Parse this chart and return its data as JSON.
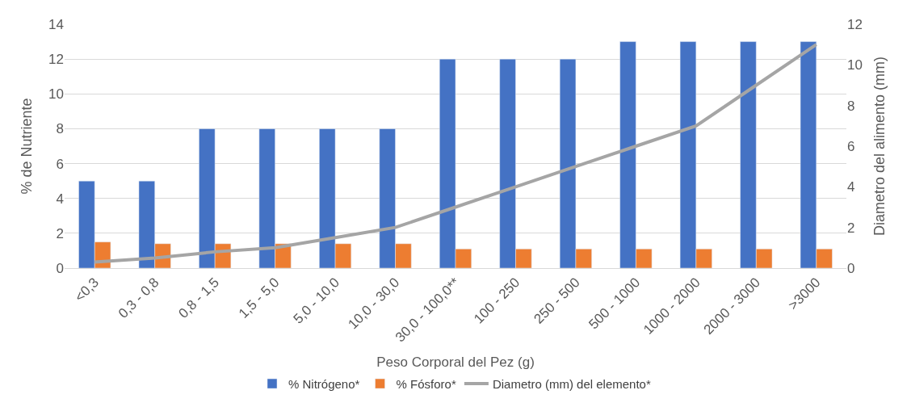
{
  "chart_data": {
    "type": "bar",
    "xlabel": "Peso Corporal del Pez (g)",
    "ylabel": "% de Nutriente",
    "y2label": "Diametro del alimento (mm)",
    "categories": [
      "<0,3",
      "0,3 - 0,8",
      "0,8 - 1,5",
      "1,5 - 5,0",
      "5,0 - 10,0",
      "10,0 - 30,0",
      "30,0 - 100,0**",
      "100 - 250",
      "250 - 500",
      "500 - 1000",
      "1000 - 2000",
      "2000 - 3000",
      ">3000"
    ],
    "series": [
      {
        "name": "% Nitrógeno*",
        "color": "#4472c4",
        "values": [
          5,
          5,
          8,
          8,
          8,
          8,
          12,
          12,
          12,
          13,
          13,
          13,
          13
        ]
      },
      {
        "name": "% Fósforo*",
        "color": "#ed7d31",
        "values": [
          1.5,
          1.4,
          1.4,
          1.4,
          1.4,
          1.4,
          1.1,
          1.1,
          1.1,
          1.1,
          1.1,
          1.1,
          1.1
        ]
      },
      {
        "name": "Diametro (mm) del elemento*",
        "color": "#a5a5a5",
        "type": "line",
        "axis": "y2",
        "values": [
          0.3,
          0.5,
          0.8,
          1.0,
          1.5,
          2.0,
          3.0,
          4.0,
          5.0,
          6.0,
          7.0,
          9.0,
          11.0
        ]
      }
    ],
    "ylim": [
      0,
      14
    ],
    "yticks": [
      0,
      2,
      4,
      6,
      8,
      10,
      12,
      14
    ],
    "y2lim": [
      0,
      12
    ],
    "y2ticks": [
      0,
      2,
      4,
      6,
      8,
      10,
      12
    ],
    "grid": "y",
    "legend": "bottom"
  }
}
